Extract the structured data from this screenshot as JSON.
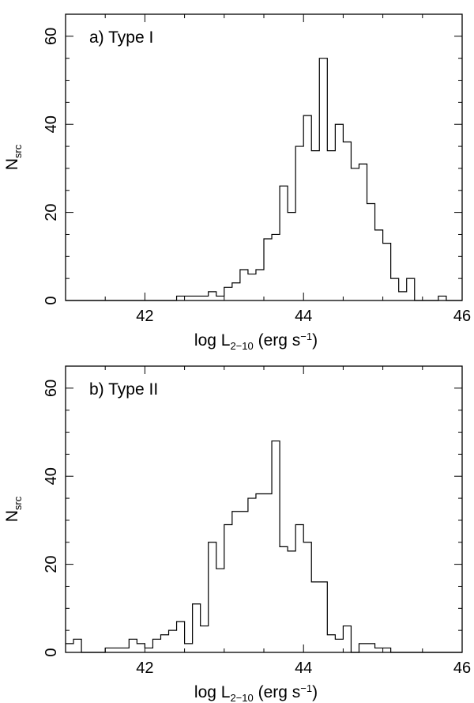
{
  "chart_data": [
    {
      "type": "histogram",
      "label": "a) Type I",
      "xlabel": {
        "main": "log L",
        "sub": "2−10",
        "tail": " (erg s",
        "sup": "−1",
        "end": ")"
      },
      "ylabel": {
        "main": "N",
        "sub": "src"
      },
      "xlim": [
        41.0,
        46.0
      ],
      "ylim": [
        0,
        65
      ],
      "xticks": [
        42,
        44,
        46
      ],
      "yticks": [
        0,
        20,
        40,
        60
      ],
      "bin_width": 0.1,
      "bin_start": 41.0,
      "counts": [
        0,
        0,
        0,
        0,
        0,
        0,
        0,
        0,
        0,
        0,
        0,
        0,
        0,
        0,
        1,
        1,
        1,
        1,
        2,
        1,
        3,
        4,
        7,
        6,
        7,
        14,
        15,
        26,
        20,
        35,
        42,
        34,
        55,
        34,
        40,
        36,
        30,
        31,
        22,
        16,
        13,
        5,
        2,
        5,
        0,
        0,
        0,
        1,
        0,
        0
      ]
    },
    {
      "type": "histogram",
      "label": "b) Type II",
      "xlabel": {
        "main": "log L",
        "sub": "2−10",
        "tail": " (erg s",
        "sup": "−1",
        "end": ")"
      },
      "ylabel": {
        "main": "N",
        "sub": "src"
      },
      "xlim": [
        41.0,
        46.0
      ],
      "ylim": [
        0,
        65
      ],
      "xticks": [
        42,
        44,
        46
      ],
      "yticks": [
        0,
        20,
        40,
        60
      ],
      "bin_width": 0.1,
      "bin_start": 41.0,
      "counts": [
        2,
        3,
        0,
        0,
        0,
        1,
        1,
        1,
        3,
        2,
        1,
        3,
        4,
        5,
        7,
        2,
        11,
        6,
        25,
        19,
        29,
        32,
        32,
        35,
        36,
        36,
        48,
        24,
        23,
        29,
        25,
        16,
        16,
        4,
        3,
        6,
        0,
        2,
        2,
        1,
        1,
        0,
        0,
        0,
        0,
        0,
        0,
        0,
        0,
        0
      ]
    }
  ]
}
